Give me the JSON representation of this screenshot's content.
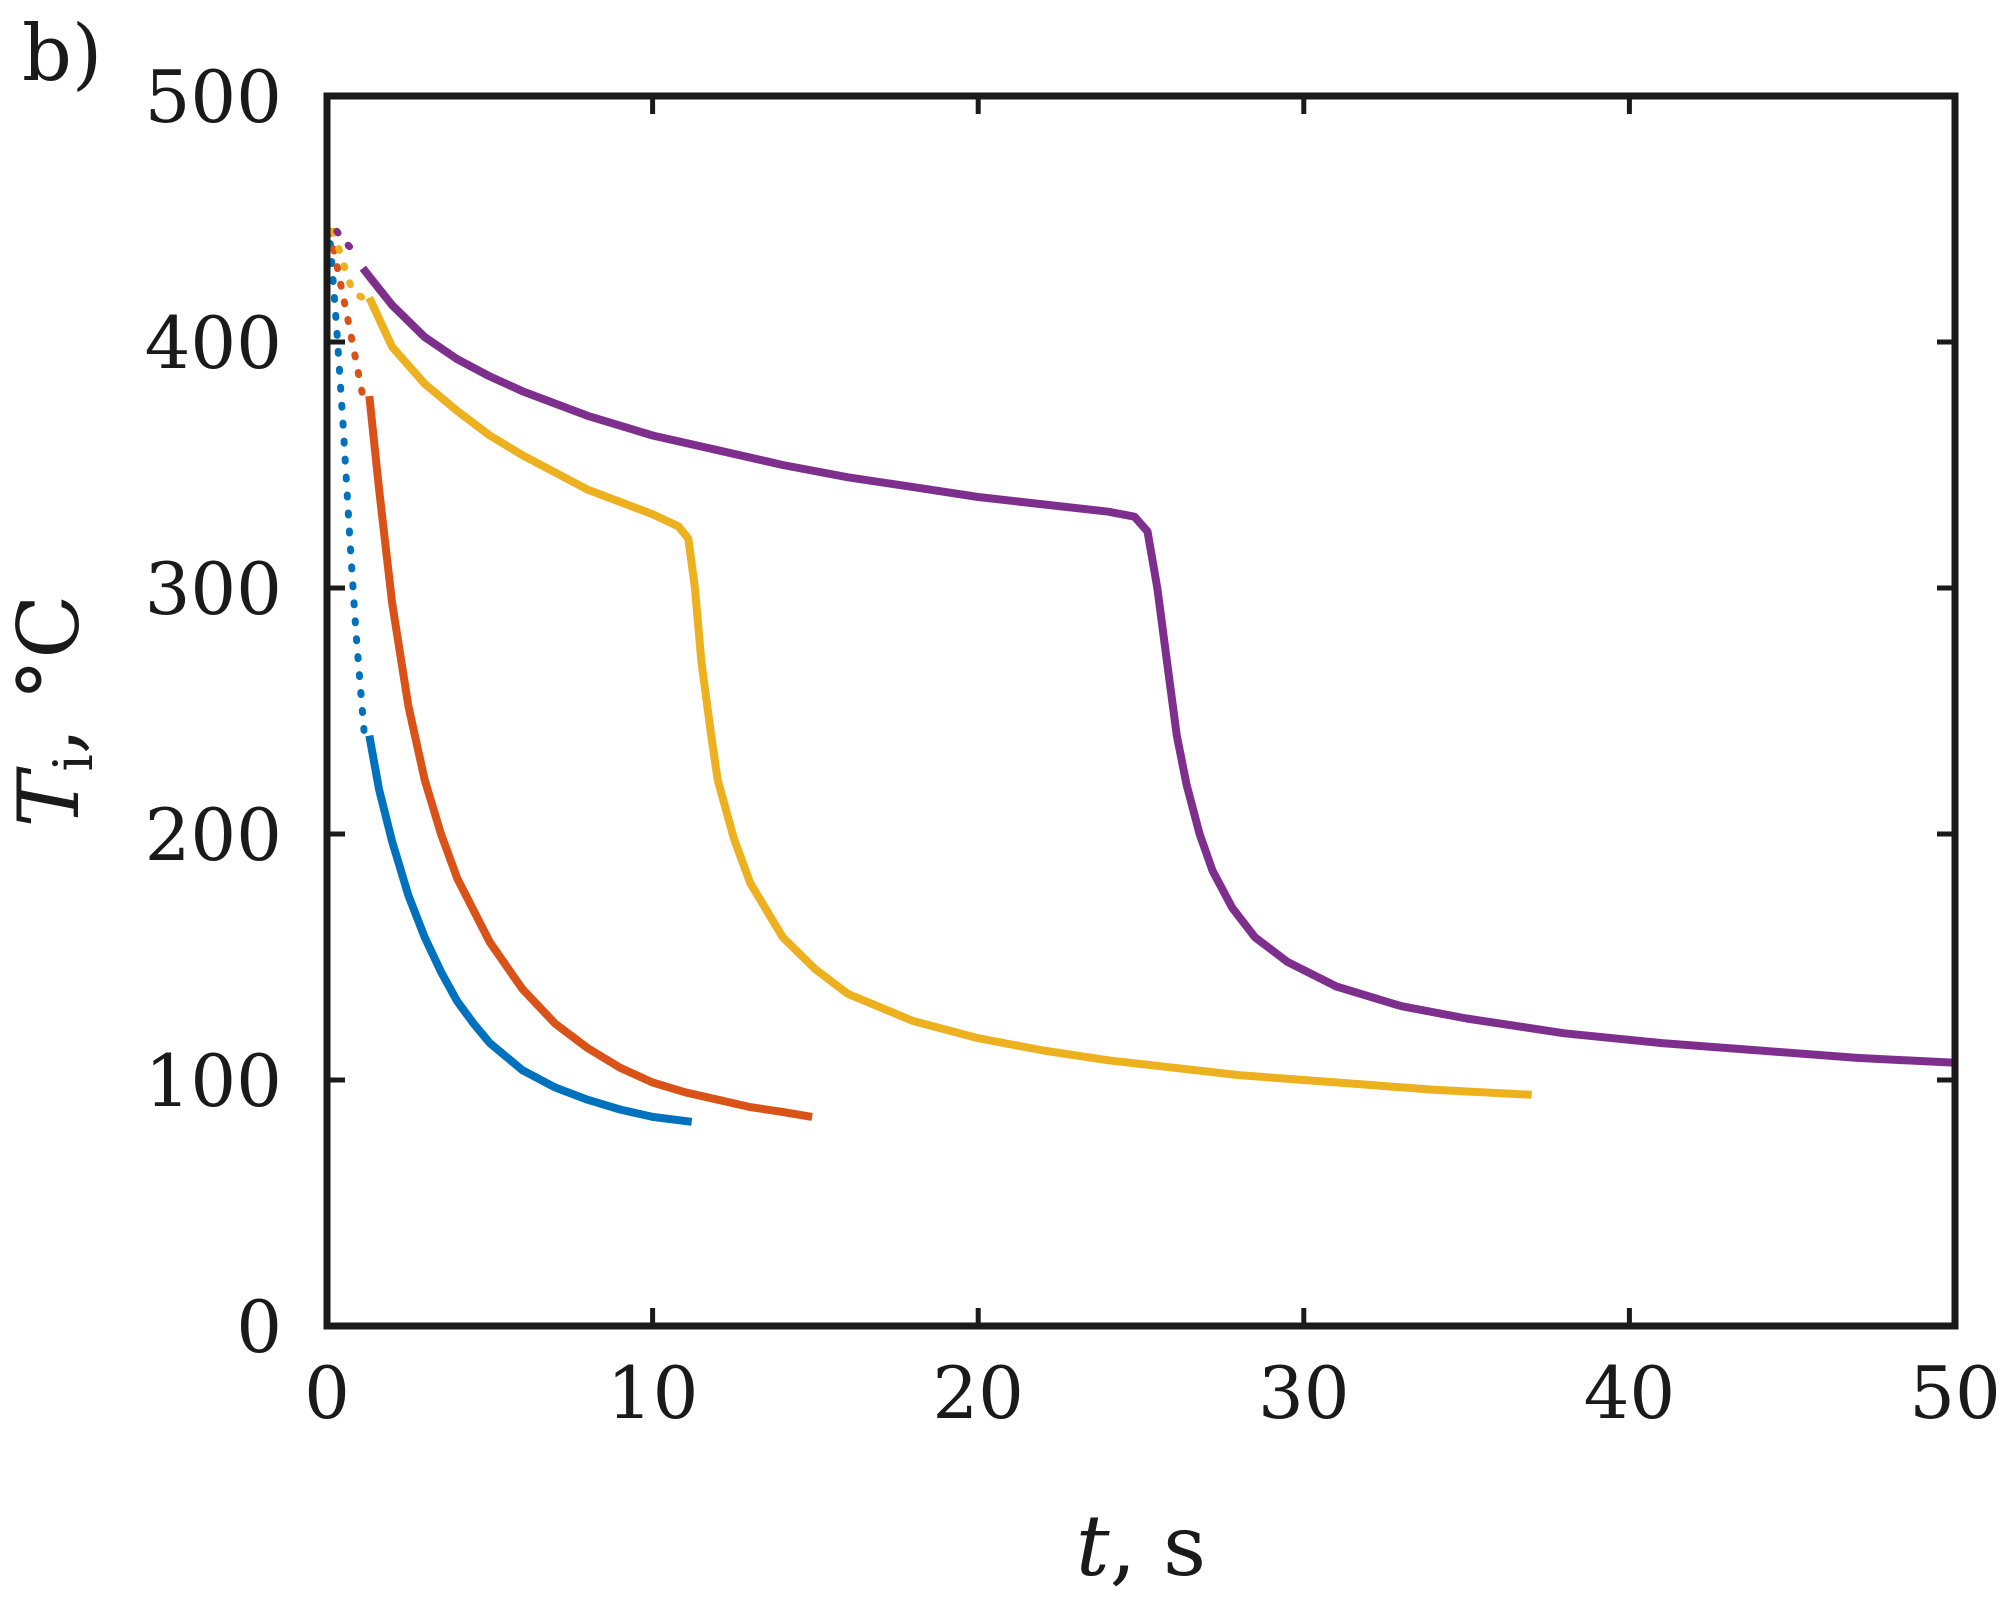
{
  "panel_label": "b)",
  "chart_data": {
    "type": "line",
    "title": "",
    "xlabel": {
      "var": "t",
      "rest": ", s"
    },
    "ylabel": {
      "var": "T",
      "sub": "i",
      "rest": ", °C"
    },
    "xlim": [
      0,
      50
    ],
    "ylim": [
      0,
      500
    ],
    "xticks": [
      0,
      10,
      20,
      30,
      40,
      50
    ],
    "yticks": [
      0,
      100,
      200,
      300,
      400,
      500
    ],
    "xtick_labels": [
      "0",
      "10",
      "20",
      "30",
      "40",
      "50"
    ],
    "ytick_labels": [
      "0",
      "100",
      "200",
      "300",
      "400",
      "500"
    ],
    "grid": false,
    "legend": "none",
    "series": [
      {
        "color": "#0072BD",
        "dotted": {
          "x": [
            0.1,
            0.3,
            0.5,
            0.7,
            0.9,
            1.15
          ],
          "y": [
            440,
            405,
            365,
            320,
            280,
            240
          ]
        },
        "solid": {
          "x": [
            1.3,
            1.6,
            2.0,
            2.5,
            3.0,
            3.5,
            4.0,
            4.5,
            5.0,
            6.0,
            7.0,
            8.0,
            9.0,
            10.0,
            11.2
          ],
          "y": [
            240,
            218,
            197,
            175,
            158,
            144,
            132,
            123,
            115,
            104,
            97,
            92,
            88,
            85,
            83
          ]
        }
      },
      {
        "color": "#D95319",
        "dotted": {
          "x": [
            0.1,
            0.35,
            0.6,
            0.85,
            1.1
          ],
          "y": [
            445,
            428,
            412,
            395,
            378
          ]
        },
        "solid": {
          "x": [
            1.3,
            1.6,
            2.0,
            2.5,
            3.0,
            3.5,
            4.0,
            5.0,
            6.0,
            7.0,
            8.0,
            9.0,
            10.0,
            11.0,
            12.0,
            13.0,
            14.0,
            14.9
          ],
          "y": [
            378,
            340,
            294,
            252,
            222,
            200,
            182,
            156,
            137,
            123,
            113,
            105,
            99,
            95,
            92,
            89,
            87,
            85
          ]
        }
      },
      {
        "color": "#EDB120",
        "dotted": {
          "x": [
            0.2,
            0.5,
            0.8,
            1.1
          ],
          "y": [
            445,
            432,
            420,
            418
          ]
        },
        "solid": {
          "x": [
            1.3,
            2.0,
            3.0,
            4.0,
            5.0,
            6.0,
            7.0,
            8.0,
            9.0,
            10.0,
            10.8,
            11.1,
            11.3,
            11.5,
            11.8,
            12.0,
            12.5,
            13.0,
            14.0,
            15.0,
            16.0,
            18.0,
            20.0,
            22.0,
            24.0,
            26.0,
            28.0,
            30.0,
            32.0,
            34.0,
            37.0
          ],
          "y": [
            418,
            398,
            383,
            372,
            362,
            354,
            347,
            340,
            335,
            330,
            325,
            320,
            300,
            270,
            240,
            222,
            198,
            180,
            158,
            145,
            135,
            124,
            117,
            112,
            108,
            105,
            102,
            100,
            98,
            96,
            94
          ]
        }
      },
      {
        "color": "#7E2F8E",
        "dotted": {
          "x": [
            0.3,
            0.6,
            0.9
          ],
          "y": [
            445,
            440,
            436
          ]
        },
        "solid": {
          "x": [
            1.1,
            2.0,
            3.0,
            4.0,
            5.0,
            6.0,
            8.0,
            10.0,
            12.0,
            14.0,
            16.0,
            18.0,
            20.0,
            22.0,
            24.0,
            24.8,
            25.2,
            25.5,
            25.8,
            26.1,
            26.4,
            26.8,
            27.2,
            27.8,
            28.5,
            29.5,
            31.0,
            33.0,
            35.0,
            38.0,
            41.0,
            44.0,
            47.0,
            50.0
          ],
          "y": [
            430,
            415,
            402,
            393,
            386,
            380,
            370,
            362,
            356,
            350,
            345,
            341,
            337,
            334,
            331,
            329,
            323,
            300,
            270,
            240,
            220,
            200,
            185,
            170,
            158,
            148,
            138,
            130,
            125,
            119,
            115,
            112,
            109,
            107
          ]
        }
      }
    ]
  }
}
